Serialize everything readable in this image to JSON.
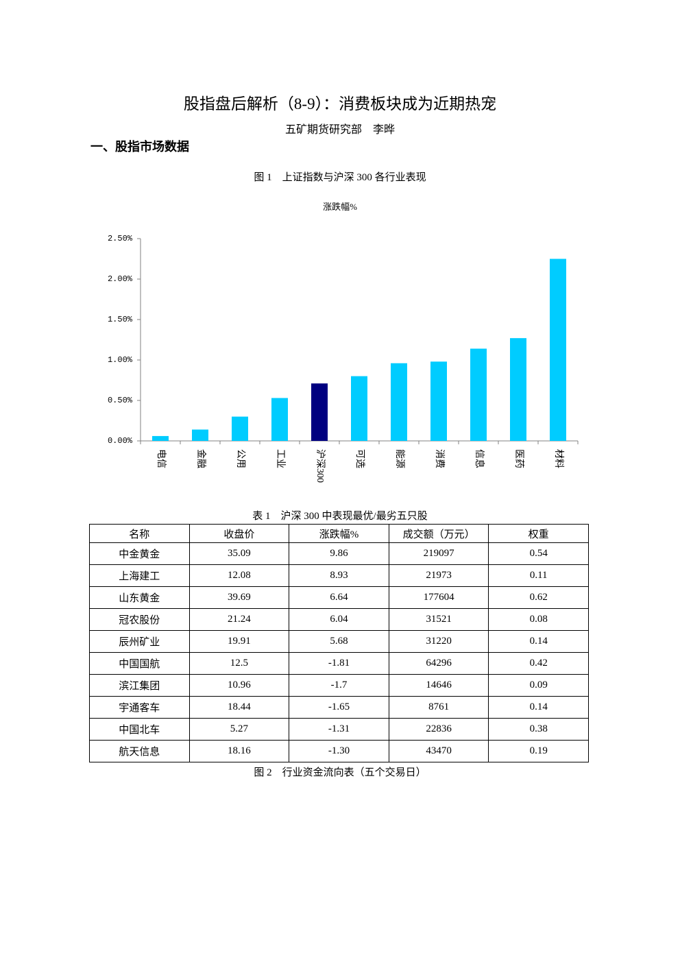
{
  "header": {
    "title": "股指盘后解析（8-9）：消费板块成为近期热宠",
    "author": "五矿期货研究部　李晔"
  },
  "section": "一、股指市场数据",
  "figure1": {
    "caption": "图 1　上证指数与沪深 300 各行业表现"
  },
  "chart_data": {
    "type": "bar",
    "title": "涨跌幅%",
    "categories": [
      "电信",
      "金融",
      "公用",
      "工业",
      "沪深300",
      "可选",
      "能源",
      "消费",
      "信息",
      "医药",
      "材料"
    ],
    "values": [
      0.06,
      0.14,
      0.3,
      0.53,
      0.71,
      0.8,
      0.96,
      0.98,
      1.14,
      1.27,
      2.25
    ],
    "colors": [
      "#00ccff",
      "#00ccff",
      "#00ccff",
      "#00ccff",
      "#000080",
      "#00ccff",
      "#00ccff",
      "#00ccff",
      "#00ccff",
      "#00ccff",
      "#00ccff"
    ],
    "ylim": [
      0,
      2.5
    ],
    "yticks": [
      {
        "value": 0,
        "label": "0.00%"
      },
      {
        "value": 0.5,
        "label": "0.50%"
      },
      {
        "value": 1,
        "label": "1.00%"
      },
      {
        "value": 1.5,
        "label": "1.50%"
      },
      {
        "value": 2,
        "label": "2.00%"
      },
      {
        "value": 2.5,
        "label": "2.50%"
      }
    ]
  },
  "table": {
    "caption": "表 1　沪深 300 中表现最优/最劣五只股",
    "columns": [
      "名称",
      "收盘价",
      "涨跌幅%",
      "成交额（万元）",
      "权重"
    ],
    "rows": [
      [
        "中金黄金",
        "35.09",
        "9.86",
        "219097",
        "0.54"
      ],
      [
        "上海建工",
        "12.08",
        "8.93",
        "21973",
        "0.11"
      ],
      [
        "山东黄金",
        "39.69",
        "6.64",
        "177604",
        "0.62"
      ],
      [
        "冠农股份",
        "21.24",
        "6.04",
        "31521",
        "0.08"
      ],
      [
        "辰州矿业",
        "19.91",
        "5.68",
        "31220",
        "0.14"
      ],
      [
        "中国国航",
        "12.5",
        "-1.81",
        "64296",
        "0.42"
      ],
      [
        "滨江集团",
        "10.96",
        "-1.7",
        "14646",
        "0.09"
      ],
      [
        "宇通客车",
        "18.44",
        "-1.65",
        "8761",
        "0.14"
      ],
      [
        "中国北车",
        "5.27",
        "-1.31",
        "22836",
        "0.38"
      ],
      [
        "航天信息",
        "18.16",
        "-1.30",
        "43470",
        "0.19"
      ]
    ]
  },
  "figure2": {
    "caption": "图 2　行业资金流向表（五个交易日）"
  }
}
